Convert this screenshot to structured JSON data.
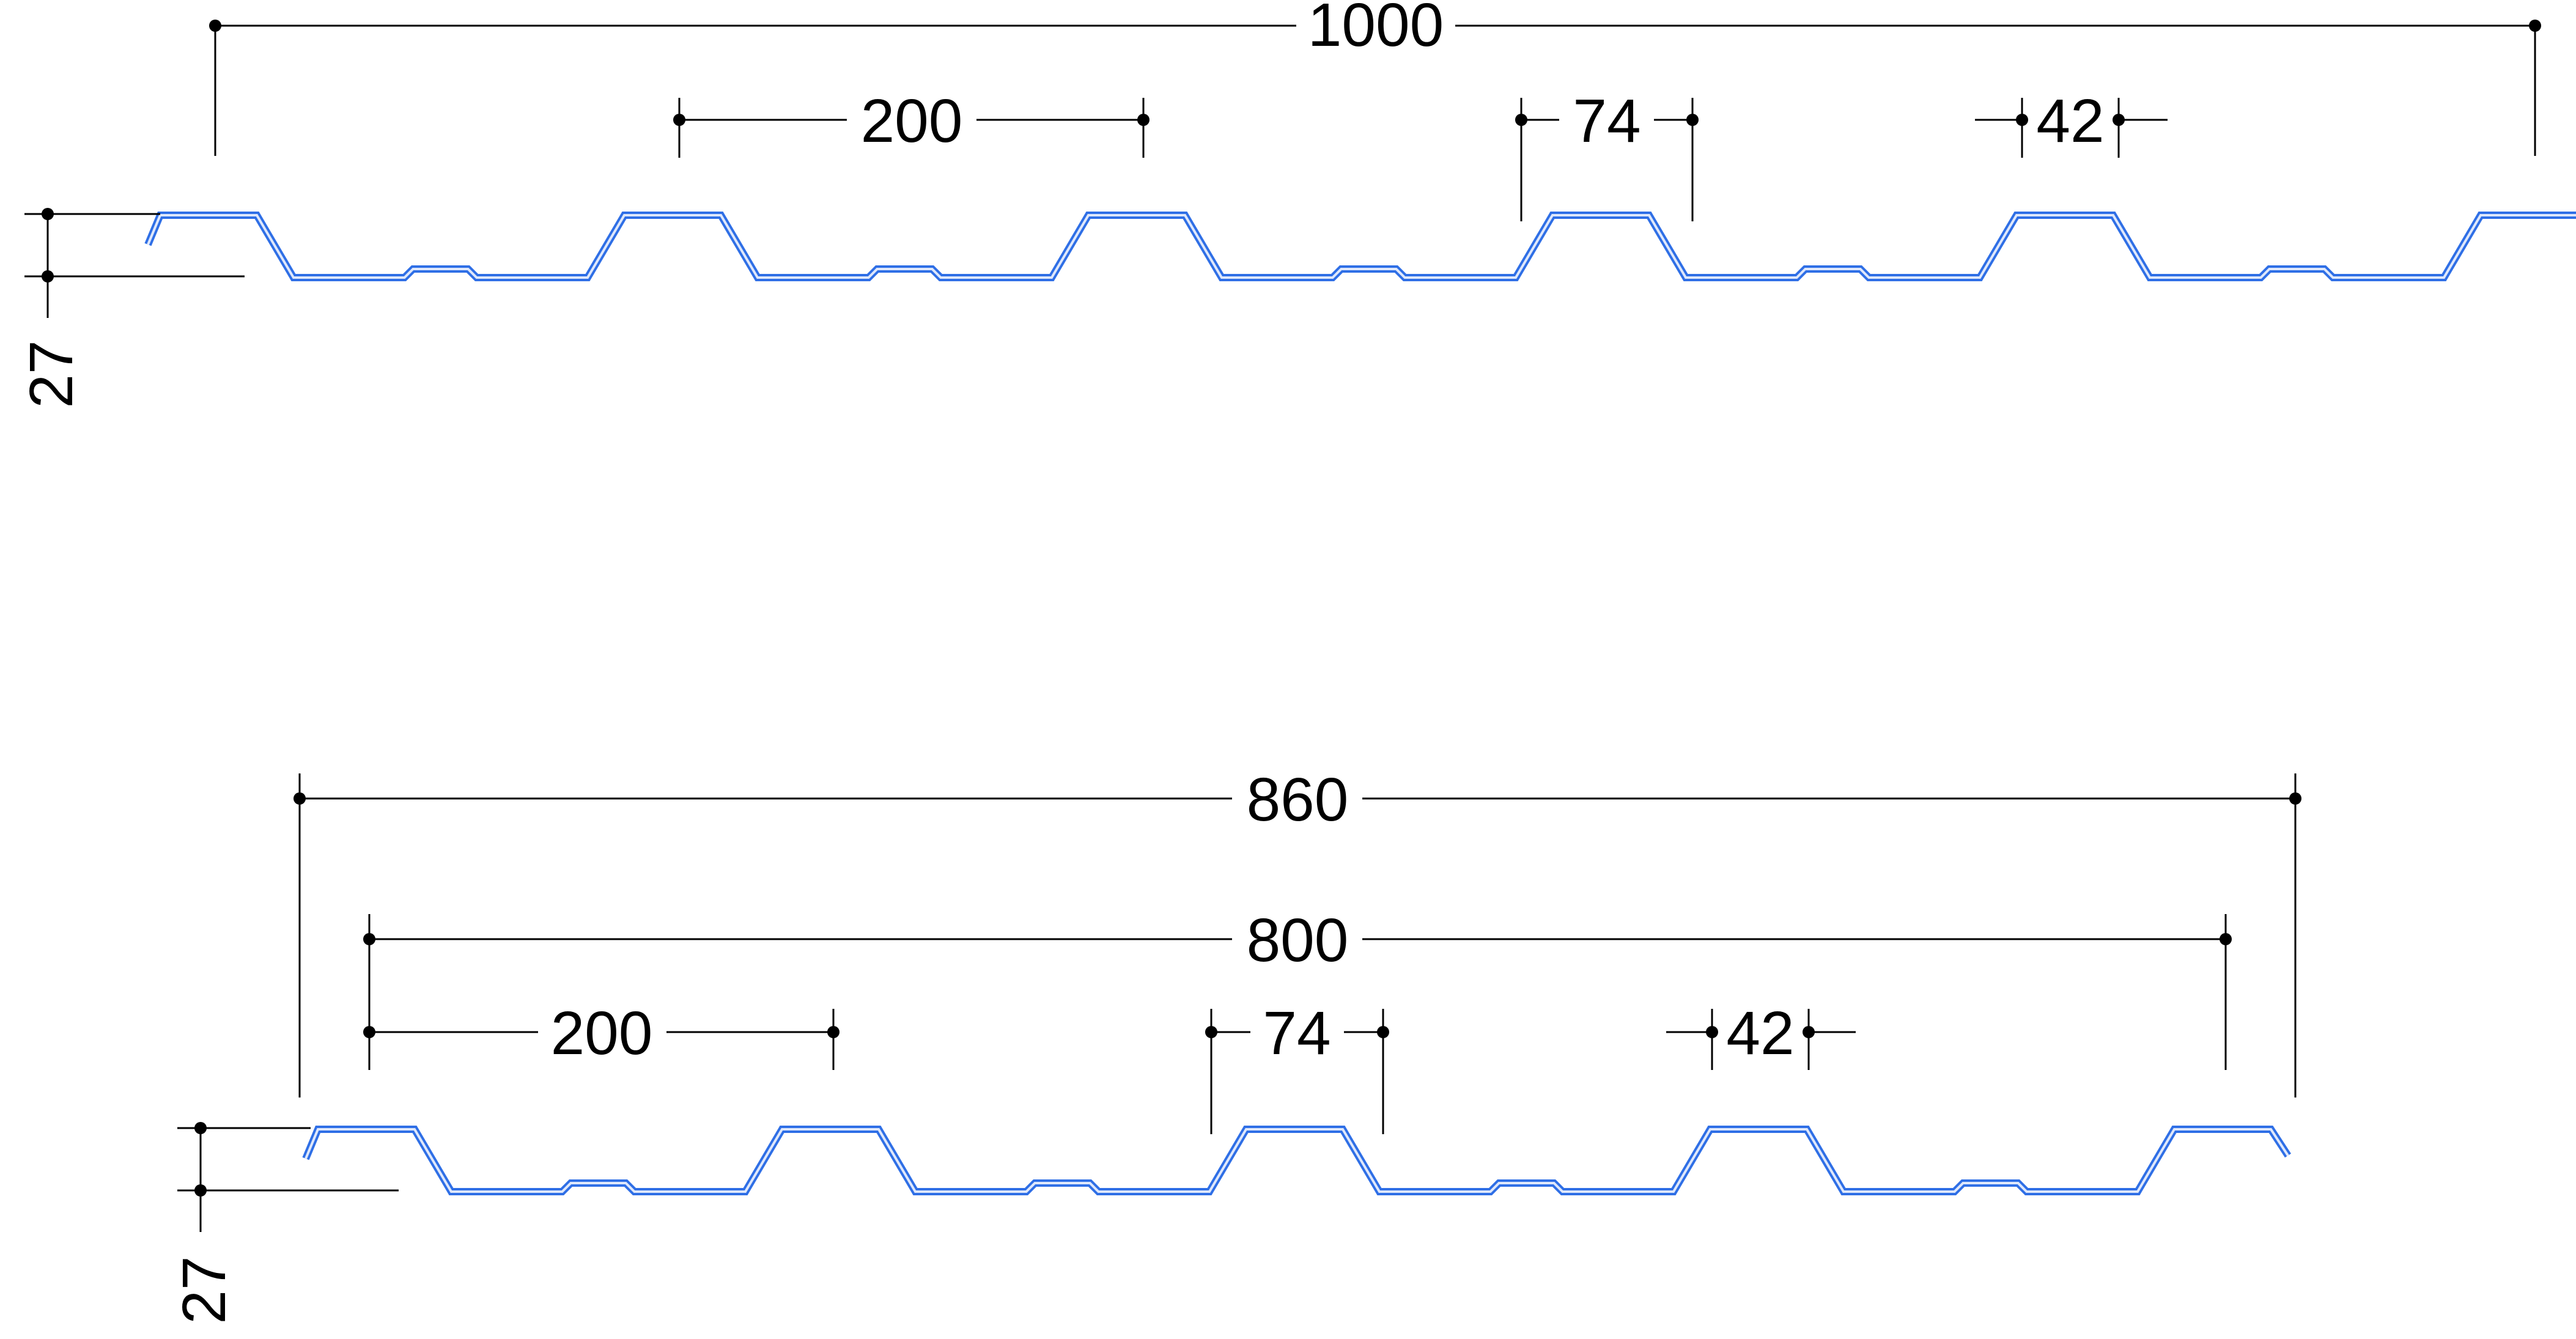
{
  "colors": {
    "profile_stroke": "#2f6fe6",
    "profile_highlight": "#dfe8fb",
    "dimension_line": "#000000",
    "background": "#ffffff"
  },
  "profile_top": {
    "dimensions": {
      "overall_width": "1000",
      "rib_pitch": "200",
      "rib_width": "74",
      "stiffener_width": "42",
      "profile_height": "27"
    }
  },
  "profile_bottom": {
    "dimensions": {
      "overall_width": "860",
      "effective_width": "800",
      "rib_pitch": "200",
      "rib_width": "74",
      "stiffener_width": "42",
      "profile_height": "27"
    }
  }
}
